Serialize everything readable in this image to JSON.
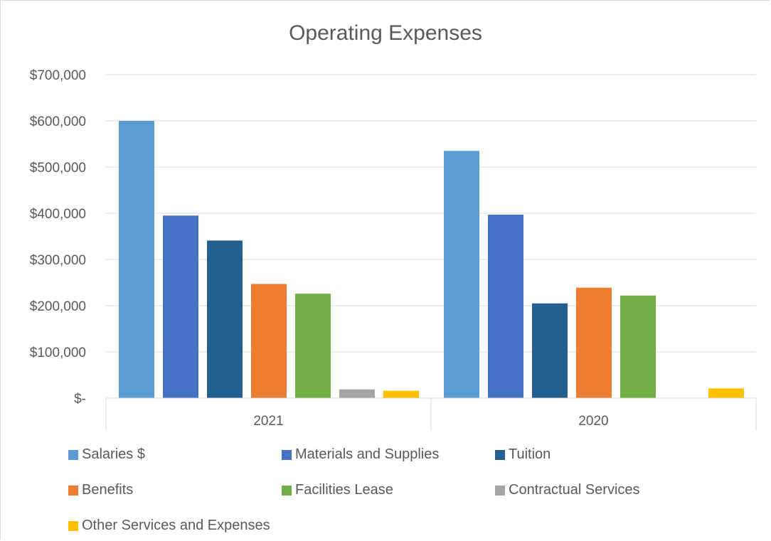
{
  "chart_data": {
    "type": "bar",
    "title": "Operating Expenses",
    "categories": [
      "2021",
      "2020"
    ],
    "ylim": [
      0,
      700000
    ],
    "yticks": [
      0,
      100000,
      200000,
      300000,
      400000,
      500000,
      600000,
      700000
    ],
    "ytick_labels": [
      "$-",
      "$100,000",
      "$200,000",
      "$300,000",
      "$400,000",
      "$500,000",
      "$600,000",
      "$700,000"
    ],
    "grid": true,
    "legend_position": "bottom",
    "series": [
      {
        "name": "Salaries $",
        "color": "#5b9bd5",
        "values": [
          600000,
          535000
        ]
      },
      {
        "name": "Materials and Supplies",
        "color": "#4472c4",
        "values": [
          395000,
          397000
        ]
      },
      {
        "name": "Tuition",
        "color": "#255e91",
        "values": [
          341000,
          205000
        ]
      },
      {
        "name": "Benefits",
        "color": "#ed7d31",
        "values": [
          247000,
          239000
        ]
      },
      {
        "name": "Facilities Lease",
        "color": "#70ad47",
        "values": [
          226000,
          222000
        ]
      },
      {
        "name": "Contractual Services",
        "color": "#a5a5a5",
        "values": [
          19000,
          0
        ]
      },
      {
        "name": "Other Services and Expenses",
        "color": "#ffc000",
        "values": [
          16000,
          21000
        ]
      }
    ]
  }
}
